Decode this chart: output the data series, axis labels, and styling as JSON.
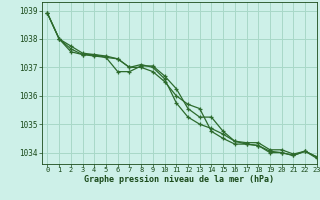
{
  "background_color": "#cdf0e8",
  "grid_color": "#a8d8c8",
  "line_color": "#2d6b2d",
  "marker_color": "#2d6b2d",
  "xlabel": "Graphe pression niveau de la mer (hPa)",
  "xlabel_color": "#1a4a1a",
  "tick_color": "#1a4a1a",
  "ylim": [
    1033.6,
    1039.3
  ],
  "xlim": [
    -0.5,
    23
  ],
  "yticks": [
    1034,
    1035,
    1036,
    1037,
    1038,
    1039
  ],
  "xticks": [
    0,
    1,
    2,
    3,
    4,
    5,
    6,
    7,
    8,
    9,
    10,
    11,
    12,
    13,
    14,
    15,
    16,
    17,
    18,
    19,
    20,
    21,
    22,
    23
  ],
  "series": [
    [
      1038.9,
      1038.0,
      1037.55,
      1037.45,
      1037.4,
      1037.35,
      1036.85,
      1036.85,
      1037.05,
      1037.05,
      1036.7,
      1036.25,
      1035.55,
      1035.25,
      1035.25,
      1034.75,
      1034.4,
      1034.35,
      1034.35,
      1034.1,
      1034.1,
      1033.95,
      1034.05,
      1033.85
    ],
    [
      1038.9,
      1038.0,
      1037.75,
      1037.5,
      1037.45,
      1037.4,
      1037.3,
      1037.0,
      1037.1,
      1037.0,
      1036.6,
      1035.75,
      1035.25,
      1035.0,
      1034.85,
      1034.65,
      1034.4,
      1034.3,
      1034.25,
      1034.05,
      1034.0,
      1033.9,
      1034.05,
      1033.85
    ],
    [
      1038.9,
      1038.0,
      1037.65,
      1037.45,
      1037.45,
      1037.35,
      1037.3,
      1037.0,
      1037.0,
      1036.85,
      1036.5,
      1036.0,
      1035.7,
      1035.55,
      1034.75,
      1034.5,
      1034.3,
      1034.3,
      1034.25,
      1034.0,
      1034.0,
      1033.9,
      1034.05,
      1033.8
    ]
  ]
}
